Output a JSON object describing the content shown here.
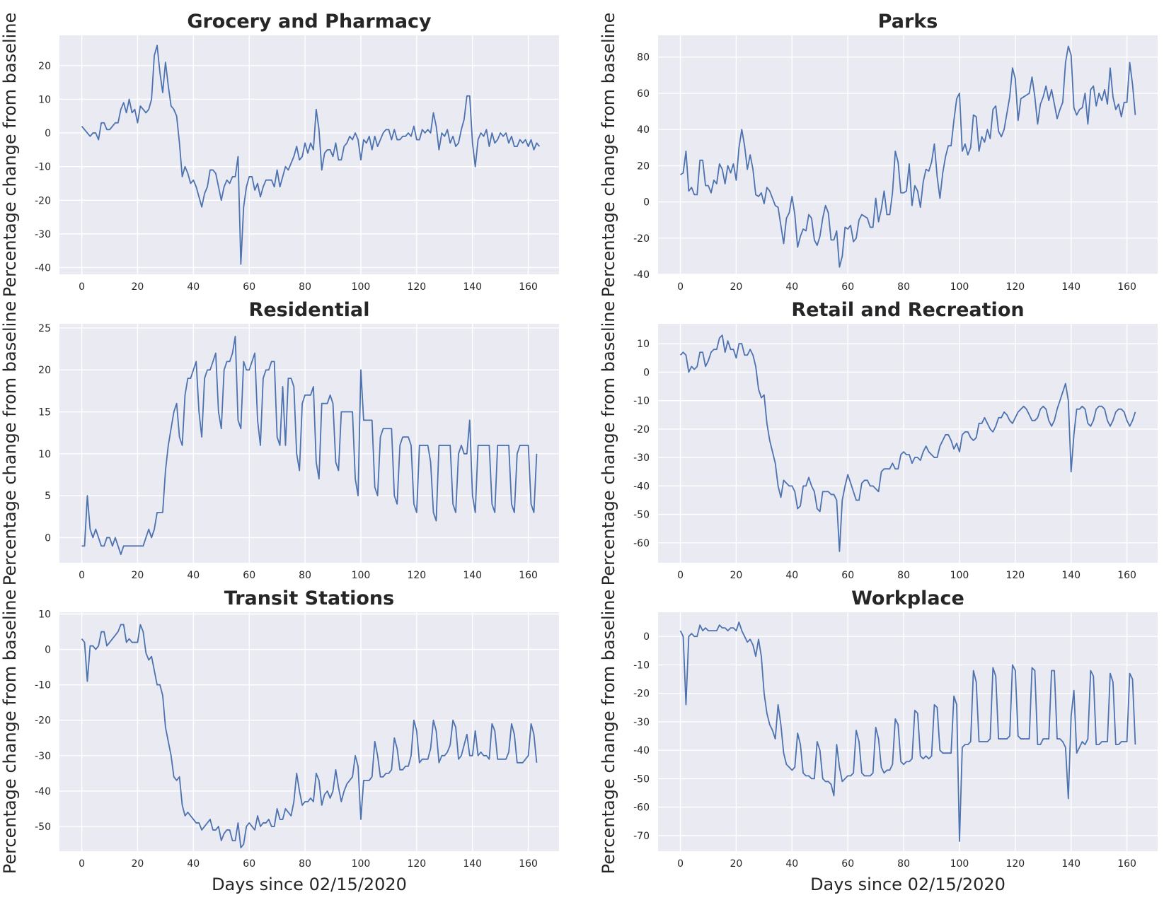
{
  "figure": {
    "xlabel": "Days since 02/15/2020",
    "ylabel": "Percentage change from baseline",
    "background": "#eaeaf2",
    "grid_color": "#ffffff",
    "line_color": "#4c72b0"
  },
  "chart_data": [
    {
      "type": "line",
      "title": "Grocery and Pharmacy",
      "xlim": [
        -8,
        171
      ],
      "ylim": [
        -42,
        29
      ],
      "xticks": [
        0,
        20,
        40,
        60,
        80,
        100,
        120,
        140,
        160
      ],
      "yticks": [
        -40,
        -30,
        -20,
        -10,
        0,
        10,
        20
      ],
      "grid": true,
      "series": [
        {
          "x_start": 0,
          "x_step": 1,
          "values": [
            2,
            1,
            0,
            -1,
            0,
            0,
            -2,
            3,
            3,
            1,
            1,
            2,
            3,
            3,
            7,
            9,
            6,
            10,
            6,
            7,
            3,
            8,
            7,
            6,
            7,
            10,
            23,
            26,
            18,
            12,
            21,
            14,
            8,
            7,
            5,
            -3,
            -13,
            -10,
            -12,
            -15,
            -14,
            -16,
            -19,
            -22,
            -18,
            -16,
            -11,
            -11,
            -12,
            -16,
            -20,
            -16,
            -14,
            -15,
            -13,
            -13,
            -7,
            -39,
            -22,
            -16,
            -13,
            -13,
            -17,
            -15,
            -19,
            -16,
            -14,
            -14,
            -14,
            -16,
            -11,
            -16,
            -13,
            -10,
            -11,
            -9,
            -7,
            -4,
            -8,
            -7,
            -3,
            -6,
            -3,
            -5,
            7,
            1,
            -11,
            -6,
            -5,
            -5,
            -7,
            -3,
            -8,
            -8,
            -4,
            -3,
            -1,
            -2,
            0,
            -2,
            -8,
            -2,
            -3,
            -1,
            -5,
            -1,
            -4,
            -2,
            0,
            1,
            1,
            -2,
            1,
            -2,
            -2,
            -1,
            -1,
            0,
            -1,
            2,
            -2,
            -2,
            1,
            0,
            1,
            0,
            6,
            2,
            -5,
            0,
            -1,
            1,
            -3,
            -1,
            -4,
            -3,
            1,
            4,
            11,
            11,
            -3,
            -10,
            -2,
            0,
            -1,
            1,
            -4,
            0,
            -3,
            -2,
            0,
            -1,
            0,
            -3,
            -1,
            -4,
            -4,
            -2,
            -3,
            -2,
            -4,
            -2,
            -5,
            -3,
            -4
          ]
        }
      ]
    },
    {
      "type": "line",
      "title": "Parks",
      "xlim": [
        -8,
        171
      ],
      "ylim": [
        -40,
        92
      ],
      "xticks": [
        0,
        20,
        40,
        60,
        80,
        100,
        120,
        140,
        160
      ],
      "yticks": [
        -40,
        -20,
        0,
        20,
        40,
        60,
        80
      ],
      "grid": true,
      "series": [
        {
          "x_start": 0,
          "x_step": 1,
          "values": [
            15,
            16,
            28,
            6,
            8,
            4,
            4,
            23,
            23,
            9,
            9,
            5,
            12,
            10,
            21,
            18,
            10,
            20,
            16,
            21,
            12,
            30,
            40,
            31,
            18,
            26,
            18,
            4,
            3,
            5,
            -1,
            8,
            6,
            2,
            -2,
            -3,
            -13,
            -23,
            -9,
            -6,
            3,
            -7,
            -25,
            -19,
            -15,
            -16,
            -7,
            -9,
            -21,
            -24,
            -19,
            -9,
            -2,
            -6,
            -21,
            -21,
            -16,
            -36,
            -30,
            -14,
            -15,
            -13,
            -22,
            -20,
            -10,
            -7,
            -8,
            -9,
            -14,
            -14,
            2,
            -11,
            -4,
            6,
            -7,
            -7,
            5,
            28,
            22,
            5,
            5,
            6,
            21,
            -2,
            9,
            6,
            -3,
            11,
            18,
            17,
            22,
            32,
            14,
            2,
            16,
            25,
            31,
            31,
            45,
            57,
            60,
            28,
            32,
            26,
            30,
            48,
            47,
            28,
            36,
            33,
            40,
            35,
            51,
            53,
            39,
            36,
            40,
            49,
            58,
            74,
            68,
            45,
            57,
            58,
            59,
            60,
            69,
            58,
            43,
            54,
            58,
            64,
            56,
            62,
            54,
            46,
            51,
            55,
            77,
            86,
            81,
            52,
            48,
            51,
            52,
            60,
            43,
            62,
            64,
            53,
            60,
            56,
            62,
            54,
            74,
            58,
            51,
            54,
            47,
            55,
            55,
            77,
            65,
            48
          ]
        }
      ]
    },
    {
      "type": "line",
      "title": "Residential",
      "xlim": [
        -8,
        171
      ],
      "ylim": [
        -3,
        25.5
      ],
      "xticks": [
        0,
        20,
        40,
        60,
        80,
        100,
        120,
        140,
        160
      ],
      "yticks": [
        0,
        5,
        10,
        15,
        20,
        25
      ],
      "grid": true,
      "series": [
        {
          "x_start": 0,
          "x_step": 1,
          "values": [
            -1,
            -1,
            5,
            1,
            0,
            1,
            0,
            -1,
            -1,
            0,
            0,
            -1,
            0,
            -1,
            -2,
            -1,
            -1,
            -1,
            -1,
            -1,
            -1,
            -1,
            -1,
            0,
            1,
            0,
            1,
            3,
            3,
            3,
            8,
            11,
            13,
            15,
            16,
            12,
            11,
            17,
            19,
            19,
            20,
            21,
            15,
            12,
            19,
            20,
            20,
            21,
            22,
            15,
            13,
            20,
            21,
            21,
            22,
            24,
            14,
            13,
            21,
            20,
            20,
            21,
            22,
            14,
            11,
            19,
            20,
            20,
            21,
            21,
            12,
            11,
            18,
            11,
            19,
            19,
            18,
            10,
            8,
            16,
            17,
            17,
            17,
            18,
            9,
            7,
            16,
            16,
            16,
            17,
            16,
            9,
            8,
            15,
            15,
            15,
            15,
            15,
            7,
            5,
            20,
            14,
            14,
            14,
            14,
            6,
            5,
            12,
            13,
            13,
            13,
            13,
            5,
            4,
            11,
            12,
            12,
            12,
            11,
            4,
            3,
            11,
            11,
            11,
            11,
            9,
            3,
            2,
            11,
            11,
            11,
            11,
            11,
            4,
            3,
            10,
            11,
            10,
            10,
            14,
            5,
            3,
            11,
            11,
            11,
            11,
            11,
            4,
            3,
            11,
            11,
            11,
            11,
            11,
            4,
            3,
            10,
            11,
            11,
            11,
            11,
            4,
            3,
            10
          ]
        }
      ]
    },
    {
      "type": "line",
      "title": "Retail and Recreation",
      "xlim": [
        -8,
        171
      ],
      "ylim": [
        -67,
        17
      ],
      "xticks": [
        0,
        20,
        40,
        60,
        80,
        100,
        120,
        140,
        160
      ],
      "yticks": [
        -60,
        -50,
        -40,
        -30,
        -20,
        -10,
        0,
        10
      ],
      "grid": true,
      "series": [
        {
          "x_start": 0,
          "x_step": 1,
          "values": [
            6,
            7,
            6,
            0,
            2,
            1,
            2,
            7,
            7,
            2,
            4,
            7,
            8,
            8,
            12,
            13,
            7,
            11,
            8,
            8,
            5,
            10,
            10,
            6,
            6,
            8,
            6,
            2,
            -6,
            -9,
            -8,
            -18,
            -24,
            -28,
            -32,
            -40,
            -44,
            -38,
            -39,
            -40,
            -40,
            -42,
            -48,
            -47,
            -40,
            -40,
            -37,
            -40,
            -42,
            -48,
            -49,
            -42,
            -42,
            -42,
            -43,
            -43,
            -45,
            -63,
            -45,
            -40,
            -36,
            -39,
            -42,
            -45,
            -45,
            -39,
            -38,
            -38,
            -40,
            -40,
            -41,
            -42,
            -35,
            -34,
            -34,
            -34,
            -32,
            -34,
            -34,
            -29,
            -28,
            -29,
            -29,
            -32,
            -30,
            -30,
            -31,
            -28,
            -26,
            -28,
            -29,
            -30,
            -30,
            -26,
            -24,
            -22,
            -22,
            -24,
            -27,
            -25,
            -28,
            -22,
            -21,
            -21,
            -23,
            -24,
            -23,
            -18,
            -18,
            -16,
            -18,
            -20,
            -21,
            -19,
            -16,
            -16,
            -14,
            -15,
            -17,
            -18,
            -16,
            -14,
            -13,
            -12,
            -13,
            -15,
            -17,
            -17,
            -16,
            -13,
            -12,
            -13,
            -17,
            -19,
            -17,
            -13,
            -10,
            -7,
            -4,
            -10,
            -35,
            -22,
            -13,
            -13,
            -12,
            -13,
            -18,
            -19,
            -17,
            -13,
            -12,
            -12,
            -13,
            -17,
            -19,
            -17,
            -14,
            -13,
            -13,
            -14,
            -17,
            -19,
            -17,
            -14
          ]
        }
      ]
    },
    {
      "type": "line",
      "title": "Transit Stations",
      "xlim": [
        -8,
        171
      ],
      "ylim": [
        -57,
        10.5
      ],
      "xticks": [
        0,
        20,
        40,
        60,
        80,
        100,
        120,
        140,
        160
      ],
      "yticks": [
        -50,
        -40,
        -30,
        -20,
        -10,
        0,
        10
      ],
      "grid": true,
      "series": [
        {
          "x_start": 0,
          "x_step": 1,
          "values": [
            3,
            2,
            -9,
            1,
            1,
            0,
            1,
            5,
            5,
            1,
            2,
            3,
            4,
            5,
            7,
            7,
            2,
            3,
            2,
            2,
            2,
            7,
            5,
            -1,
            -3,
            -2,
            -6,
            -10,
            -10,
            -13,
            -22,
            -26,
            -30,
            -36,
            -37,
            -36,
            -44,
            -47,
            -46,
            -47,
            -48,
            -49,
            -49,
            -51,
            -50,
            -49,
            -48,
            -51,
            -51,
            -50,
            -54,
            -52,
            -51,
            -51,
            -54,
            -54,
            -49,
            -56,
            -55,
            -50,
            -49,
            -50,
            -51,
            -47,
            -50,
            -49,
            -49,
            -48,
            -50,
            -50,
            -45,
            -48,
            -48,
            -45,
            -46,
            -47,
            -43,
            -35,
            -40,
            -44,
            -43,
            -43,
            -42,
            -43,
            -35,
            -37,
            -44,
            -41,
            -40,
            -42,
            -40,
            -34,
            -39,
            -43,
            -40,
            -38,
            -37,
            -36,
            -30,
            -33,
            -48,
            -37,
            -37,
            -37,
            -36,
            -26,
            -30,
            -36,
            -36,
            -35,
            -35,
            -34,
            -25,
            -28,
            -34,
            -34,
            -33,
            -33,
            -30,
            -20,
            -23,
            -32,
            -31,
            -31,
            -31,
            -28,
            -20,
            -23,
            -32,
            -30,
            -30,
            -29,
            -27,
            -20,
            -22,
            -31,
            -30,
            -27,
            -24,
            -30,
            -30,
            -23,
            -30,
            -29,
            -30,
            -30,
            -31,
            -21,
            -23,
            -31,
            -31,
            -31,
            -31,
            -29,
            -21,
            -24,
            -32,
            -32,
            -32,
            -31,
            -30,
            -21,
            -24,
            -32
          ]
        }
      ]
    },
    {
      "type": "line",
      "title": "Workplace",
      "xlim": [
        -8,
        171
      ],
      "ylim": [
        -75.5,
        8.5
      ],
      "xticks": [
        0,
        20,
        40,
        60,
        80,
        100,
        120,
        140,
        160
      ],
      "yticks": [
        -70,
        -60,
        -50,
        -40,
        -30,
        -20,
        -10,
        0
      ],
      "grid": true,
      "series": [
        {
          "x_start": 0,
          "x_step": 1,
          "values": [
            2,
            0,
            -24,
            0,
            1,
            0,
            0,
            4,
            2,
            3,
            2,
            2,
            2,
            2,
            4,
            3,
            3,
            2,
            3,
            3,
            2,
            5,
            2,
            0,
            -2,
            -1,
            -3,
            -7,
            -1,
            -7,
            -20,
            -27,
            -31,
            -33,
            -36,
            -24,
            -31,
            -41,
            -45,
            -46,
            -47,
            -46,
            -34,
            -38,
            -48,
            -49,
            -49,
            -50,
            -50,
            -37,
            -40,
            -50,
            -51,
            -51,
            -52,
            -56,
            -38,
            -46,
            -51,
            -50,
            -49,
            -49,
            -48,
            -33,
            -37,
            -48,
            -49,
            -49,
            -49,
            -48,
            -32,
            -36,
            -46,
            -48,
            -47,
            -47,
            -45,
            -29,
            -31,
            -44,
            -45,
            -44,
            -44,
            -43,
            -26,
            -27,
            -42,
            -43,
            -42,
            -43,
            -42,
            -24,
            -25,
            -40,
            -41,
            -41,
            -41,
            -41,
            -21,
            -24,
            -72,
            -39,
            -38,
            -38,
            -37,
            -12,
            -16,
            -37,
            -37,
            -37,
            -37,
            -36,
            -11,
            -14,
            -36,
            -36,
            -36,
            -36,
            -35,
            -10,
            -12,
            -35,
            -36,
            -36,
            -36,
            -36,
            -11,
            -12,
            -38,
            -38,
            -36,
            -36,
            -36,
            -12,
            -12,
            -36,
            -36,
            -37,
            -39,
            -57,
            -28,
            -19,
            -41,
            -39,
            -37,
            -38,
            -36,
            -12,
            -14,
            -38,
            -38,
            -37,
            -37,
            -37,
            -13,
            -16,
            -38,
            -38,
            -37,
            -37,
            -37,
            -13,
            -15,
            -38
          ]
        }
      ]
    }
  ]
}
